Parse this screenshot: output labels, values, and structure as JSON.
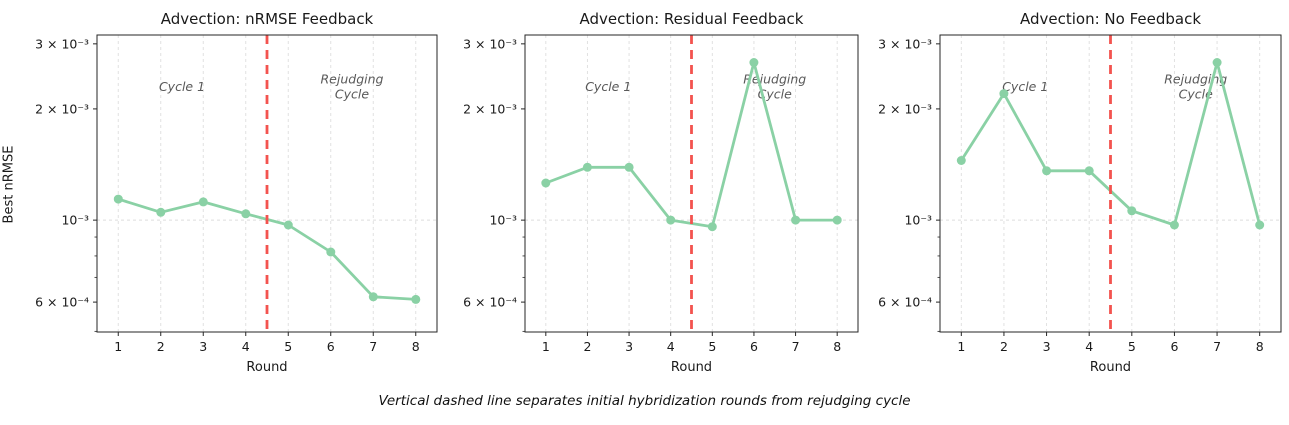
{
  "figure": {
    "caption": "Vertical dashed line separates initial hybridization rounds from rejudging cycle"
  },
  "chart_data": {
    "type": "line",
    "yscale": "log",
    "grid": true,
    "xlabel": "Round",
    "ylabel": "Best nRMSE",
    "x": [
      1,
      2,
      3,
      4,
      5,
      6,
      7,
      8
    ],
    "xlim": [
      0.5,
      8.5
    ],
    "ylim": [
      0.000498,
      0.00317
    ],
    "yticks": [
      {
        "label": "3 × 10⁻³",
        "value": 0.003,
        "grid": false
      },
      {
        "label": "2 × 10⁻³",
        "value": 0.002,
        "grid": false
      },
      {
        "label": "10⁻³",
        "value": 0.001,
        "grid": true
      },
      {
        "label": "6 × 10⁻⁴",
        "value": 0.0006,
        "grid": false
      }
    ],
    "y_minor_ticks": [
      0.0005,
      0.0007,
      0.0008,
      0.0009
    ],
    "divider": {
      "x": 4.5,
      "color": "#f3534f",
      "style": "dashed"
    },
    "annotations": [
      {
        "id": "cycle1",
        "text": "Cycle 1",
        "x": 2.5,
        "y": 0.0023
      },
      {
        "id": "rejudging",
        "text": "Rejudging\nCycle",
        "x": 6.5,
        "y": 0.0023
      }
    ],
    "series_color": "#8ad1a5",
    "grid_color": "#dedede",
    "annotation_color": "#595959",
    "spine_color": "#262626",
    "panels": [
      {
        "title": "Advection: nRMSE Feedback",
        "values": [
          0.00114,
          0.00105,
          0.00112,
          0.00104,
          0.00097,
          0.00082,
          0.00062,
          0.00061
        ]
      },
      {
        "title": "Advection: Residual Feedback",
        "values": [
          0.00126,
          0.00139,
          0.00139,
          0.001,
          0.00096,
          0.00267,
          0.001,
          0.001
        ]
      },
      {
        "title": "Advection: No Feedback",
        "values": [
          0.00145,
          0.0022,
          0.00136,
          0.00136,
          0.00106,
          0.00097,
          0.00267,
          0.00097
        ]
      }
    ]
  }
}
